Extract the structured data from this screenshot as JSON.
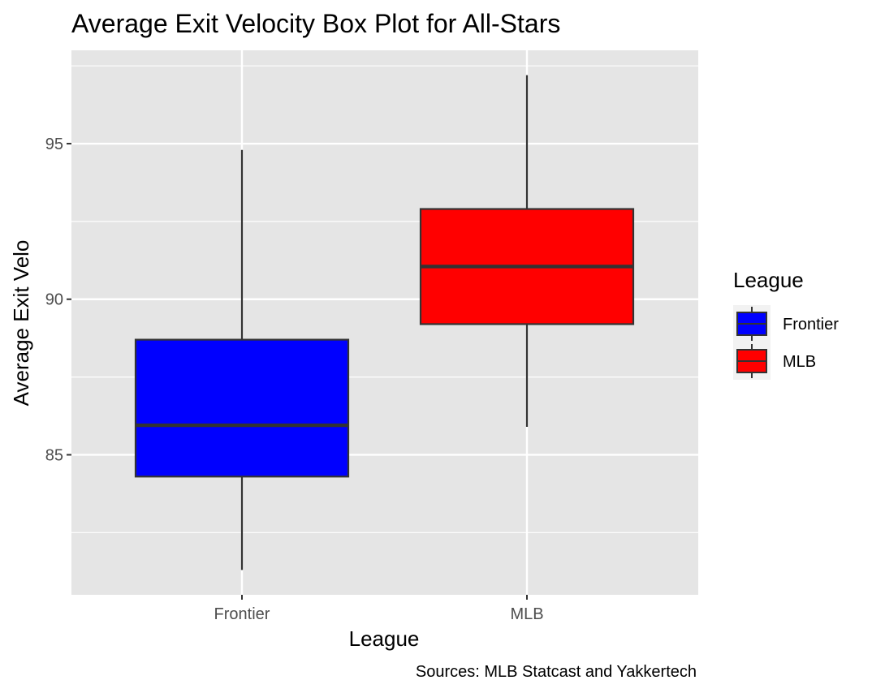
{
  "chart_data": {
    "type": "box",
    "title": "Average Exit Velocity Box Plot for All-Stars",
    "xlabel": "League",
    "ylabel": "Average Exit Velo",
    "caption": "Sources: MLB Statcast and Yakkertech",
    "categories": [
      "Frontier",
      "MLB"
    ],
    "ylim": [
      80.5,
      98
    ],
    "yticks": [
      85,
      90,
      95
    ],
    "yticks_labels": [
      "85",
      "90",
      "95"
    ],
    "grid": true,
    "series": [
      {
        "name": "Frontier",
        "whisker_low": 81.3,
        "q1": 84.3,
        "median": 85.95,
        "q3": 88.7,
        "whisker_high": 94.8,
        "color": "#0000ff"
      },
      {
        "name": "MLB",
        "whisker_low": 85.9,
        "q1": 89.2,
        "median": 91.05,
        "q3": 92.9,
        "whisker_high": 97.2,
        "color": "#ff0000"
      }
    ],
    "legend": {
      "title": "League",
      "placement": "right",
      "items": [
        "Frontier",
        "MLB"
      ]
    },
    "panel_background": "#e5e5e5",
    "grid_color": "#ffffff",
    "line_color": "#333333"
  }
}
